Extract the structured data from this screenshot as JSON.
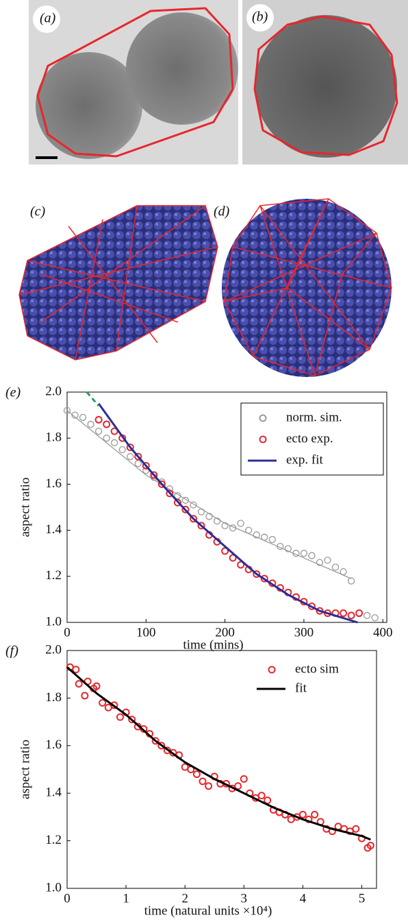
{
  "panel_labels": [
    "(a)",
    "(b)",
    "(c)",
    "(d)"
  ],
  "chart_data": [
    {
      "type": "scatter",
      "panel_label": "(e)",
      "x_label": "time (mins)",
      "y_label": "aspect ratio",
      "xlim": [
        0,
        405
      ],
      "ylim": [
        1.0,
        2.0
      ],
      "xticks": [
        0,
        100,
        200,
        300,
        400
      ],
      "yticks": [
        {
          "value": 1.0,
          "label": "1.0"
        },
        1.2,
        1.4,
        1.6,
        1.8,
        {
          "value": 2.0,
          "label": "2.0"
        }
      ],
      "legend_frame": true,
      "series": [
        {
          "name": "norm. sim.",
          "color": "#999999",
          "style": "markers",
          "x": [
            0,
            10,
            20,
            30,
            40,
            50,
            60,
            70,
            80,
            90,
            100,
            110,
            120,
            130,
            140,
            150,
            160,
            170,
            180,
            190,
            200,
            210,
            220,
            230,
            240,
            250,
            260,
            270,
            280,
            290,
            300,
            310,
            320,
            330,
            340,
            350,
            360,
            370,
            380,
            390
          ],
          "values": [
            1.92,
            1.9,
            1.89,
            1.86,
            1.83,
            1.8,
            1.78,
            1.75,
            1.72,
            1.69,
            1.66,
            1.63,
            1.61,
            1.58,
            1.55,
            1.53,
            1.51,
            1.48,
            1.46,
            1.44,
            1.42,
            1.41,
            1.43,
            1.4,
            1.38,
            1.37,
            1.36,
            1.33,
            1.32,
            1.3,
            1.3,
            1.29,
            1.26,
            1.27,
            1.24,
            1.22,
            1.18,
            1.04,
            1.03,
            1.02
          ]
        },
        {
          "color": "#999999",
          "style": "line",
          "x": [
            0,
            100,
            200,
            300,
            360
          ],
          "values": [
            1.92,
            1.64,
            1.43,
            1.28,
            1.19
          ]
        },
        {
          "name": "ecto exp.",
          "color": "#e8262b",
          "style": "markers",
          "x": [
            40,
            50,
            60,
            70,
            80,
            90,
            100,
            110,
            120,
            130,
            140,
            150,
            160,
            170,
            180,
            190,
            200,
            210,
            220,
            230,
            240,
            250,
            260,
            270,
            280,
            290,
            300,
            310,
            320,
            330,
            340,
            350,
            360,
            370
          ],
          "values": [
            1.88,
            1.86,
            1.83,
            1.8,
            1.76,
            1.72,
            1.68,
            1.64,
            1.6,
            1.56,
            1.52,
            1.49,
            1.45,
            1.42,
            1.38,
            1.35,
            1.31,
            1.28,
            1.25,
            1.23,
            1.21,
            1.19,
            1.17,
            1.15,
            1.13,
            1.11,
            1.09,
            1.07,
            1.05,
            1.04,
            1.04,
            1.04,
            1.03,
            1.04
          ]
        },
        {
          "name": "exp. fit",
          "color": "#2b2e96",
          "style": "line",
          "x": [
            40,
            80,
            120,
            160,
            200,
            240,
            280,
            320,
            368
          ],
          "values": [
            1.95,
            1.76,
            1.6,
            1.45,
            1.33,
            1.21,
            1.12,
            1.05,
            1.0
          ]
        },
        {
          "color": "#1fa35a",
          "style": "dashed",
          "x": [
            25,
            40
          ],
          "values": [
            2.0,
            1.94
          ]
        }
      ]
    },
    {
      "type": "scatter",
      "panel_label": "(f)",
      "x_label": "time (natural units ×10⁴)",
      "y_label": "aspect ratio",
      "xlim": [
        0,
        5.25
      ],
      "ylim": [
        1.0,
        2.0
      ],
      "xticks": [
        0,
        1,
        2,
        3,
        4,
        5
      ],
      "yticks": [
        {
          "value": 1.0,
          "label": "1.0"
        },
        1.2,
        1.4,
        1.6,
        1.8,
        {
          "value": 2.0,
          "label": "2.0"
        }
      ],
      "legend_frame": false,
      "series": [
        {
          "name": "ecto sim",
          "color": "#e8262b",
          "style": "markers",
          "x": [
            0.05,
            0.15,
            0.2,
            0.3,
            0.35,
            0.45,
            0.5,
            0.6,
            0.7,
            0.8,
            0.9,
            1.0,
            1.1,
            1.2,
            1.3,
            1.4,
            1.5,
            1.6,
            1.7,
            1.8,
            1.9,
            2.0,
            2.1,
            2.2,
            2.3,
            2.4,
            2.5,
            2.6,
            2.7,
            2.8,
            2.9,
            3.0,
            3.1,
            3.2,
            3.3,
            3.4,
            3.5,
            3.6,
            3.7,
            3.8,
            3.9,
            4.0,
            4.1,
            4.2,
            4.3,
            4.4,
            4.5,
            4.6,
            4.7,
            4.8,
            4.9,
            5.0,
            5.1,
            5.15
          ],
          "values": [
            1.93,
            1.92,
            1.86,
            1.81,
            1.87,
            1.84,
            1.85,
            1.78,
            1.76,
            1.77,
            1.72,
            1.74,
            1.71,
            1.68,
            1.67,
            1.65,
            1.62,
            1.6,
            1.58,
            1.57,
            1.56,
            1.51,
            1.5,
            1.48,
            1.45,
            1.43,
            1.47,
            1.44,
            1.44,
            1.42,
            1.43,
            1.46,
            1.4,
            1.38,
            1.39,
            1.37,
            1.33,
            1.32,
            1.31,
            1.29,
            1.3,
            1.31,
            1.29,
            1.31,
            1.28,
            1.25,
            1.24,
            1.26,
            1.25,
            1.24,
            1.25,
            1.21,
            1.17,
            1.18
          ]
        },
        {
          "name": "fit",
          "color": "#000000",
          "style": "line",
          "x": [
            0,
            0.5,
            1,
            1.5,
            2,
            2.5,
            3,
            3.5,
            4,
            4.5,
            5,
            5.15
          ],
          "values": [
            1.93,
            1.82,
            1.73,
            1.62,
            1.53,
            1.46,
            1.4,
            1.34,
            1.29,
            1.25,
            1.22,
            1.205
          ]
        }
      ]
    }
  ]
}
